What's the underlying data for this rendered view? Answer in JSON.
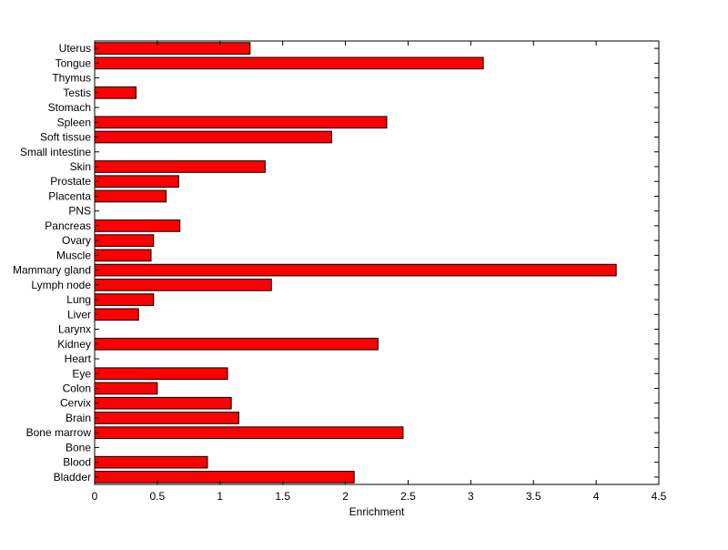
{
  "chart_data": {
    "type": "bar",
    "orientation": "horizontal",
    "xlabel": "Enrichment",
    "ylabel": "",
    "title": "",
    "xlim": [
      0,
      4.5
    ],
    "xticks": [
      "0",
      "0.5",
      "1",
      "1.5",
      "2",
      "2.5",
      "3",
      "3.5",
      "4",
      "4.5"
    ],
    "bar_color": "#ff0000",
    "bar_edge_color": "#000000",
    "grid": false,
    "categories": [
      "Uterus",
      "Tongue",
      "Thymus",
      "Testis",
      "Stomach",
      "Spleen",
      "Soft tissue",
      "Small intestine",
      "Skin",
      "Prostate",
      "Placenta",
      "PNS",
      "Pancreas",
      "Ovary",
      "Muscle",
      "Mammary gland",
      "Lymph node",
      "Lung",
      "Liver",
      "Larynx",
      "Kidney",
      "Heart",
      "Eye",
      "Colon",
      "Cervix",
      "Brain",
      "Bone marrow",
      "Bone",
      "Blood",
      "Bladder"
    ],
    "values": [
      1.24,
      3.1,
      0,
      0.33,
      0,
      2.33,
      1.89,
      0,
      1.36,
      0.67,
      0.57,
      0,
      0.68,
      0.47,
      0.45,
      4.16,
      1.41,
      0.47,
      0.35,
      0,
      2.26,
      0,
      1.06,
      0.5,
      1.09,
      1.15,
      2.46,
      0,
      0.9,
      2.07
    ]
  }
}
